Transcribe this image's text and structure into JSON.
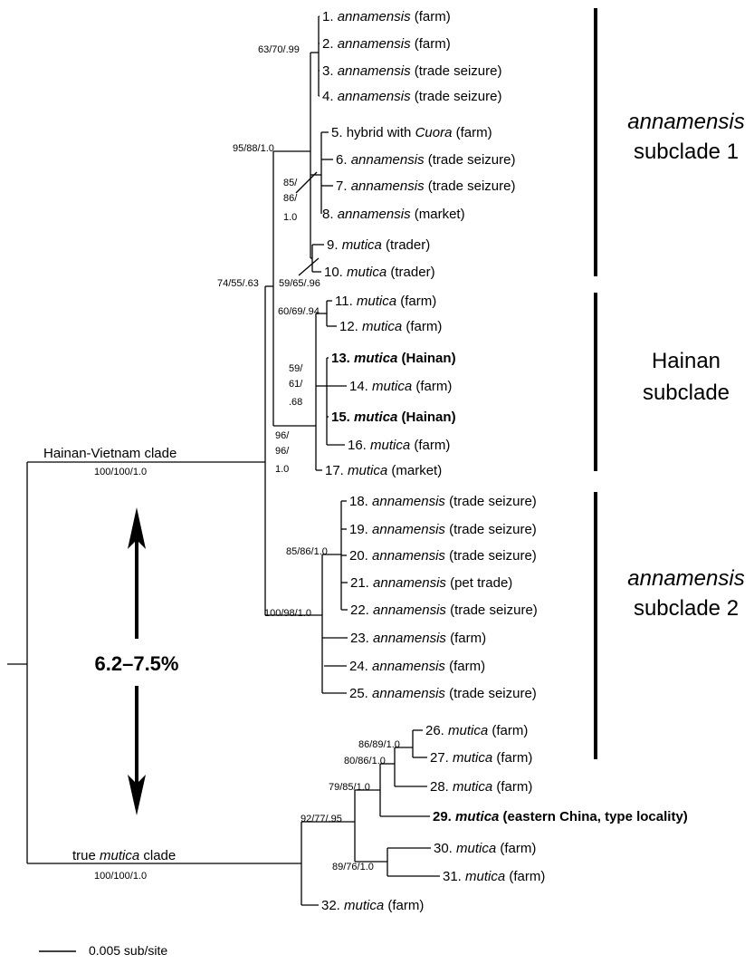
{
  "tips": [
    {
      "n": "1.",
      "sp": "annamensis",
      "src": "(farm)"
    },
    {
      "n": "2.",
      "sp": "annamensis",
      "src": "(farm)"
    },
    {
      "n": "3.",
      "sp": "annamensis",
      "src": "(trade seizure)"
    },
    {
      "n": "4.",
      "sp": "annamensis",
      "src": "(trade seizure)"
    },
    {
      "n": "5.",
      "pre": "hybrid with ",
      "sp": "Cuora",
      "src": "(farm)"
    },
    {
      "n": "6.",
      "sp": "annamensis",
      "src": "(trade seizure)"
    },
    {
      "n": "7.",
      "sp": "annamensis",
      "src": "(trade seizure)"
    },
    {
      "n": "8.",
      "sp": "annamensis",
      "src": "(market)"
    },
    {
      "n": "9.",
      "sp": "mutica",
      "src": "(trader)"
    },
    {
      "n": "10.",
      "sp": "mutica",
      "src": "(trader)"
    },
    {
      "n": "11.",
      "sp": "mutica",
      "src": "(farm)"
    },
    {
      "n": "12.",
      "sp": "mutica",
      "src": "(farm)"
    },
    {
      "n": "13.",
      "sp": "mutica",
      "src": "(Hainan)",
      "bold": true
    },
    {
      "n": "14.",
      "sp": "mutica",
      "src": "(farm)"
    },
    {
      "n": "15.",
      "sp": "mutica",
      "src": "(Hainan)",
      "bold": true
    },
    {
      "n": "16.",
      "sp": "mutica",
      "src": "(farm)"
    },
    {
      "n": "17.",
      "sp": "mutica",
      "src": "(market)"
    },
    {
      "n": "18.",
      "sp": "annamensis",
      "src": "(trade seizure)"
    },
    {
      "n": "19.",
      "sp": "annamensis",
      "src": "(trade seizure)"
    },
    {
      "n": "20.",
      "sp": "annamensis",
      "src": "(trade seizure)"
    },
    {
      "n": "21.",
      "sp": "annamensis",
      "src": "(pet trade)"
    },
    {
      "n": "22.",
      "sp": "annamensis",
      "src": "(trade seizure)"
    },
    {
      "n": "23.",
      "sp": "annamensis",
      "src": "(farm)"
    },
    {
      "n": "24.",
      "sp": "annamensis",
      "src": "(farm)"
    },
    {
      "n": "25.",
      "sp": "annamensis",
      "src": "(trade seizure)"
    },
    {
      "n": "26.",
      "sp": "mutica",
      "src": "(farm)"
    },
    {
      "n": "27.",
      "sp": "mutica",
      "src": "(farm)"
    },
    {
      "n": "28.",
      "sp": "mutica",
      "src": "(farm)"
    },
    {
      "n": "29.",
      "sp": "mutica",
      "src": "(eastern China, type locality)",
      "bold": true
    },
    {
      "n": "30.",
      "sp": "mutica",
      "src": "(farm)"
    },
    {
      "n": "31.",
      "sp": "mutica",
      "src": "(farm)"
    },
    {
      "n": "32.",
      "sp": "mutica",
      "src": "(farm)"
    }
  ],
  "support": {
    "s1": "63/70/.99",
    "s2": "95/88/1.0",
    "s3a": "85/",
    "s3b": "86/",
    "s3c": "1.0",
    "s4": "59/65/.96",
    "s5": "74/55/.63",
    "s6": "60/69/.94",
    "s7a": "59/",
    "s7b": "61/",
    "s7c": ".68",
    "s8a": "96/",
    "s8b": "96/",
    "s8c": "1.0",
    "s9": "85/86/1.0",
    "s10": "100/98/1.0",
    "s11": "86/89/1.0",
    "s12": "80/86/1.0",
    "s13": "79/85/1.0",
    "s14": "92/77/.95",
    "s15": "89/76/1.0",
    "s16": "100/100/1.0",
    "s17": "100/100/1.0"
  },
  "clades": {
    "hainan_vietnam": "Hainan-Vietnam clade",
    "true_mutica_pre": "true ",
    "true_mutica_sp": "mutica",
    "true_mutica_post": " clade"
  },
  "groups": {
    "g1_line1": "annamensis",
    "g1_line2": "subclade 1",
    "g2_line1": "Hainan",
    "g2_line2": "subclade",
    "g3_line1": "annamensis",
    "g3_line2": "subclade 2"
  },
  "distance_label": "6.2–7.5%",
  "scale_bar_label": "0.005 sub/site"
}
